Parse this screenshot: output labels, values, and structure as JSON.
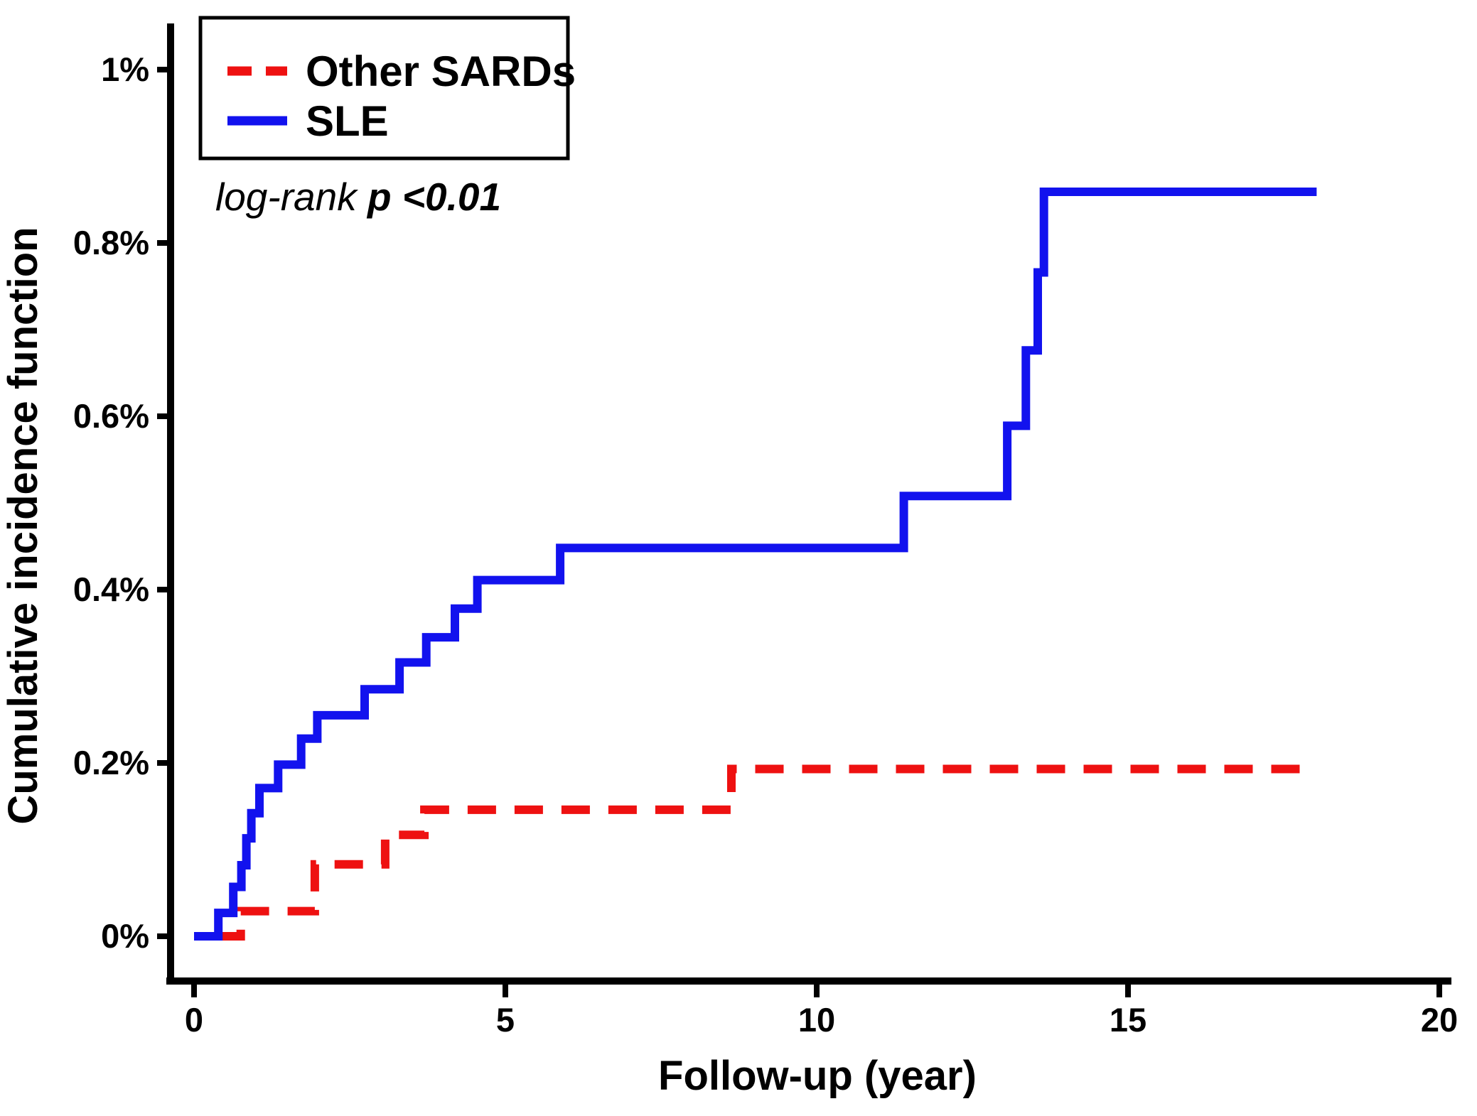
{
  "figure": {
    "y_axis_title": "Cumulative incidence function",
    "x_axis_title": "Follow-up (year)",
    "annotation_prefix": "log-rank ",
    "annotation_value": "p <0.01"
  },
  "chart_data": {
    "type": "line",
    "subtype": "step",
    "title": "",
    "xlabel": "Follow-up (year)",
    "ylabel": "Cumulative incidence function",
    "xlim": [
      0,
      20
    ],
    "ylim": [
      0,
      1
    ],
    "y_unit": "percent",
    "grid": false,
    "legend_position": "top-left",
    "annotation": "log-rank p <0.01",
    "xticks": {
      "values": [
        0,
        5,
        10,
        15,
        20
      ],
      "labels": [
        "0",
        "5",
        "10",
        "15",
        "20"
      ]
    },
    "yticks": {
      "values": [
        0,
        0.2,
        0.4,
        0.6,
        0.8,
        1.0
      ],
      "labels": [
        "0%",
        "0.2%",
        "0.4%",
        "0.6%",
        "0.8%",
        "1%"
      ]
    },
    "series": [
      {
        "name": "Other SARDs",
        "color": "#ee1111",
        "style": "dashed",
        "start": [
          0.4,
          0
        ],
        "steps": [
          [
            0.75,
            0.029
          ],
          [
            1.94,
            0.083
          ],
          [
            3.07,
            0.117
          ],
          [
            3.7,
            0.146
          ],
          [
            8.63,
            0.193
          ]
        ],
        "end_x": 18.0,
        "final_value": 0.193
      },
      {
        "name": "SLE",
        "color": "#1212ee",
        "style": "solid",
        "start": [
          0,
          0
        ],
        "steps": [
          [
            0.39,
            0.027
          ],
          [
            0.63,
            0.057
          ],
          [
            0.76,
            0.082
          ],
          [
            0.84,
            0.113
          ],
          [
            0.92,
            0.142
          ],
          [
            1.05,
            0.171
          ],
          [
            1.35,
            0.198
          ],
          [
            1.72,
            0.228
          ],
          [
            1.98,
            0.255
          ],
          [
            2.74,
            0.285
          ],
          [
            3.3,
            0.316
          ],
          [
            3.73,
            0.345
          ],
          [
            4.19,
            0.378
          ],
          [
            4.55,
            0.411
          ],
          [
            5.88,
            0.448
          ],
          [
            11.4,
            0.508
          ],
          [
            13.06,
            0.589
          ],
          [
            13.36,
            0.676
          ],
          [
            13.55,
            0.766
          ],
          [
            13.65,
            0.859
          ]
        ],
        "end_x": 18.03,
        "final_value": 0.859
      }
    ]
  }
}
